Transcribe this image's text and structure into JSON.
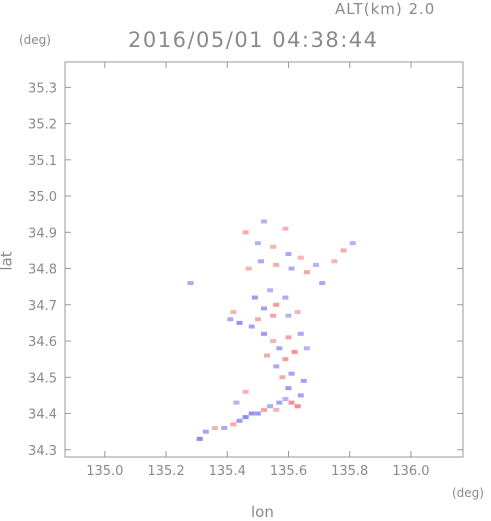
{
  "header": {
    "alt_label": "ALT(km) 2.0",
    "timestamp": "2016/05/01 04:38:44"
  },
  "axes": {
    "y_unit": "(deg)",
    "x_unit": "(deg)",
    "y_label": "lat",
    "x_label": "lon",
    "x_ticks": [
      "135.0",
      "135.2",
      "135.4",
      "135.6",
      "135.8",
      "136.0"
    ],
    "y_ticks": [
      "35.3",
      "35.2",
      "35.1",
      "35.0",
      "34.9",
      "34.8",
      "34.7",
      "34.6",
      "34.5",
      "34.4",
      "34.3"
    ]
  },
  "chart_data": {
    "type": "scatter",
    "xlim": [
      134.87,
      136.17
    ],
    "ylim": [
      34.28,
      35.37
    ],
    "x_tick_values": [
      135.0,
      135.2,
      135.4,
      135.6,
      135.8,
      136.0
    ],
    "y_tick_values": [
      35.3,
      35.2,
      35.1,
      35.0,
      34.9,
      34.8,
      34.7,
      34.6,
      34.5,
      34.4,
      34.3
    ],
    "grid": false,
    "colors": {
      "negative": "#7d7df2",
      "positive": "#f27d7d",
      "frame": "#999999"
    },
    "points": [
      [
        135.31,
        34.33,
        -0.9
      ],
      [
        135.33,
        34.35,
        -0.6
      ],
      [
        135.36,
        34.36,
        0.4
      ],
      [
        135.39,
        34.36,
        -0.5
      ],
      [
        135.42,
        34.37,
        0.5
      ],
      [
        135.44,
        34.38,
        -0.7
      ],
      [
        135.46,
        34.39,
        -0.9
      ],
      [
        135.48,
        34.4,
        -0.8
      ],
      [
        135.5,
        34.4,
        -0.7
      ],
      [
        135.52,
        34.41,
        0.6
      ],
      [
        135.54,
        34.42,
        -0.5
      ],
      [
        135.56,
        34.41,
        0.4
      ],
      [
        135.57,
        34.43,
        -0.6
      ],
      [
        135.59,
        34.44,
        -0.4
      ],
      [
        135.61,
        34.43,
        0.8
      ],
      [
        135.63,
        34.42,
        0.9
      ],
      [
        135.64,
        34.45,
        -0.6
      ],
      [
        135.6,
        34.47,
        -0.7
      ],
      [
        135.58,
        34.5,
        0.5
      ],
      [
        135.61,
        34.51,
        -0.6
      ],
      [
        135.56,
        34.53,
        -0.5
      ],
      [
        135.59,
        34.55,
        0.7
      ],
      [
        135.62,
        34.57,
        0.8
      ],
      [
        135.57,
        34.58,
        -0.6
      ],
      [
        135.55,
        34.6,
        0.4
      ],
      [
        135.6,
        34.61,
        0.6
      ],
      [
        135.64,
        34.62,
        -0.5
      ],
      [
        135.52,
        34.62,
        -0.7
      ],
      [
        135.48,
        34.64,
        -0.6
      ],
      [
        135.44,
        34.65,
        -0.8
      ],
      [
        135.41,
        34.66,
        -0.5
      ],
      [
        135.5,
        34.66,
        0.5
      ],
      [
        135.55,
        34.67,
        0.6
      ],
      [
        135.6,
        34.67,
        -0.4
      ],
      [
        135.63,
        34.68,
        0.4
      ],
      [
        135.52,
        34.69,
        -0.6
      ],
      [
        135.56,
        34.7,
        0.7
      ],
      [
        135.59,
        34.72,
        -0.5
      ],
      [
        135.49,
        34.72,
        -0.7
      ],
      [
        135.54,
        34.74,
        -0.4
      ],
      [
        135.47,
        34.8,
        0.4
      ],
      [
        135.51,
        34.82,
        -0.5
      ],
      [
        135.56,
        34.81,
        0.5
      ],
      [
        135.61,
        34.8,
        -0.5
      ],
      [
        135.66,
        34.79,
        0.6
      ],
      [
        135.69,
        34.81,
        -0.4
      ],
      [
        135.64,
        34.83,
        0.4
      ],
      [
        135.6,
        34.84,
        -0.5
      ],
      [
        135.55,
        34.86,
        0.4
      ],
      [
        135.5,
        34.87,
        -0.4
      ],
      [
        135.46,
        34.9,
        0.5
      ],
      [
        135.52,
        34.93,
        -0.4
      ],
      [
        135.59,
        34.91,
        0.4
      ],
      [
        135.71,
        34.76,
        -0.5
      ],
      [
        135.78,
        34.85,
        0.5
      ],
      [
        135.81,
        34.87,
        -0.4
      ],
      [
        135.75,
        34.82,
        0.4
      ],
      [
        135.28,
        34.76,
        -0.5
      ],
      [
        135.43,
        34.43,
        -0.4
      ],
      [
        135.46,
        34.46,
        0.4
      ],
      [
        135.65,
        34.49,
        -0.6
      ],
      [
        135.53,
        34.56,
        0.5
      ],
      [
        135.66,
        34.58,
        -0.4
      ],
      [
        135.42,
        34.68,
        0.4
      ]
    ]
  }
}
